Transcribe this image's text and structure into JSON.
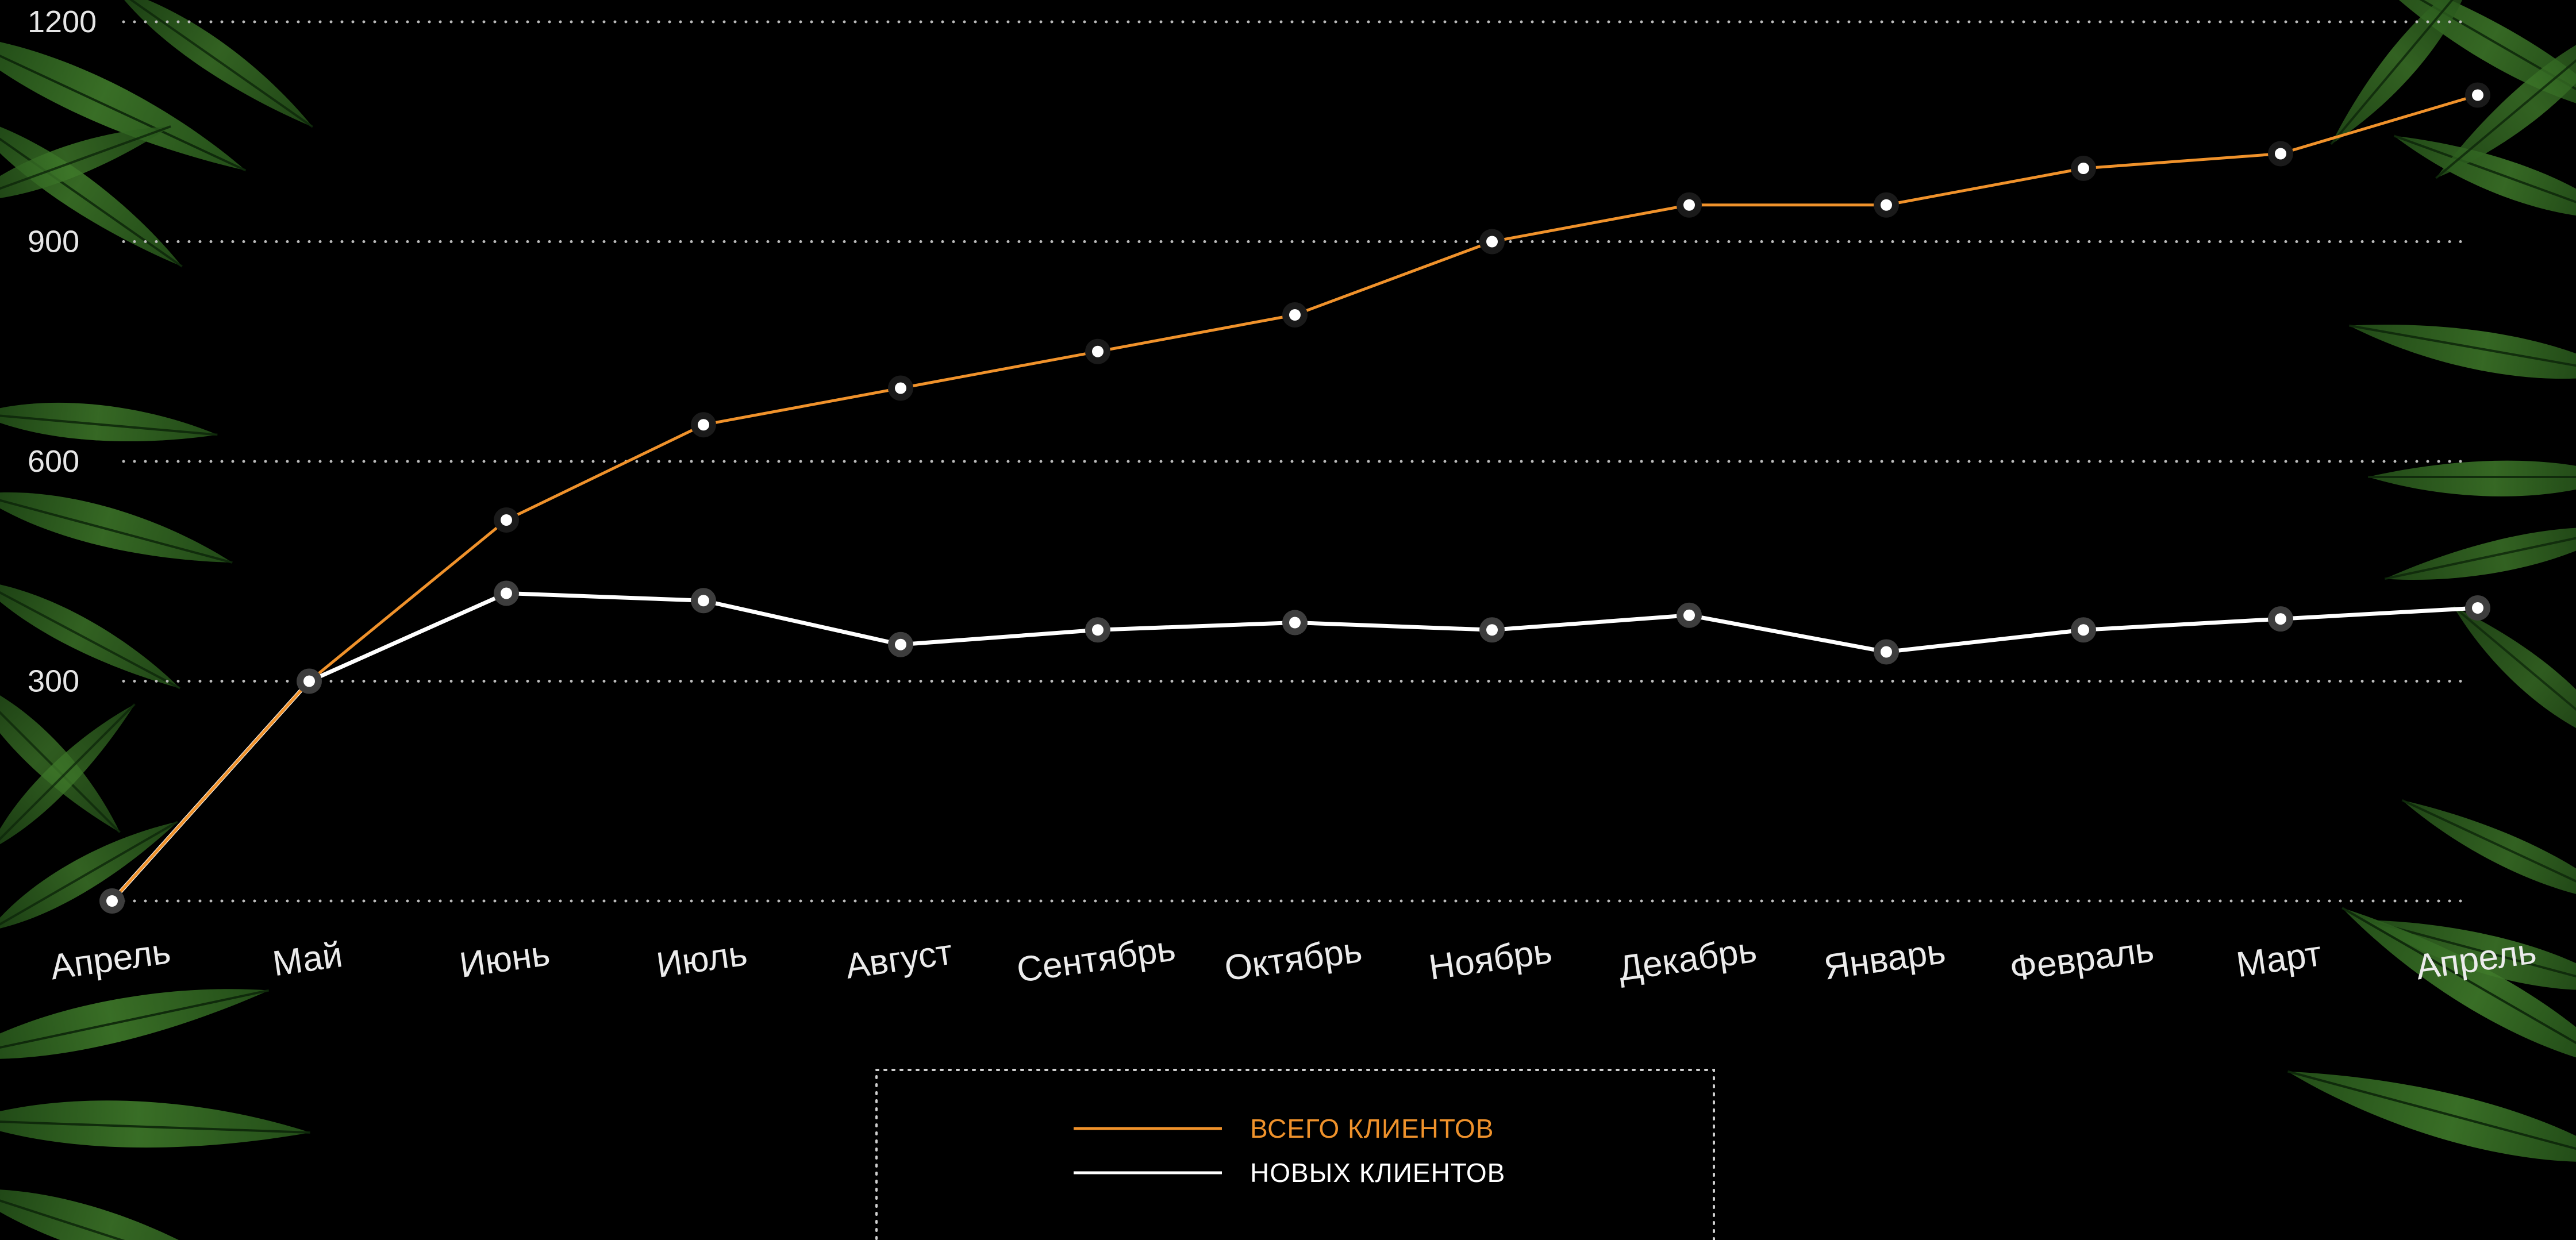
{
  "chart_data": {
    "type": "line",
    "title": "",
    "xlabel": "",
    "ylabel": "",
    "ylim": [
      0,
      1200
    ],
    "y_ticks": [
      "1200",
      "900",
      "600",
      "300"
    ],
    "grid": true,
    "legend_position": "bottom-center",
    "categories": [
      "Апрель",
      "Май",
      "Июнь",
      "Июль",
      "Август",
      "Сентябрь",
      "Октябрь",
      "Ноябрь",
      "Декабрь",
      "Январь",
      "Февраль",
      "Март",
      "Апрель"
    ],
    "series": [
      {
        "name": "ВСЕГО КЛИЕНТОВ",
        "color": "#f0922b",
        "values": [
          0,
          300,
          520,
          650,
          700,
          750,
          800,
          900,
          950,
          950,
          1000,
          1020,
          1100
        ]
      },
      {
        "name": "НОВЫХ КЛИЕНТОВ",
        "color": "#ffffff",
        "values": [
          0,
          300,
          420,
          410,
          350,
          370,
          380,
          370,
          390,
          340,
          370,
          385,
          400
        ]
      }
    ]
  },
  "decoration": {
    "background": "#000000",
    "foliage": "palm-leaves",
    "grid_color": "#bdbdbd"
  }
}
